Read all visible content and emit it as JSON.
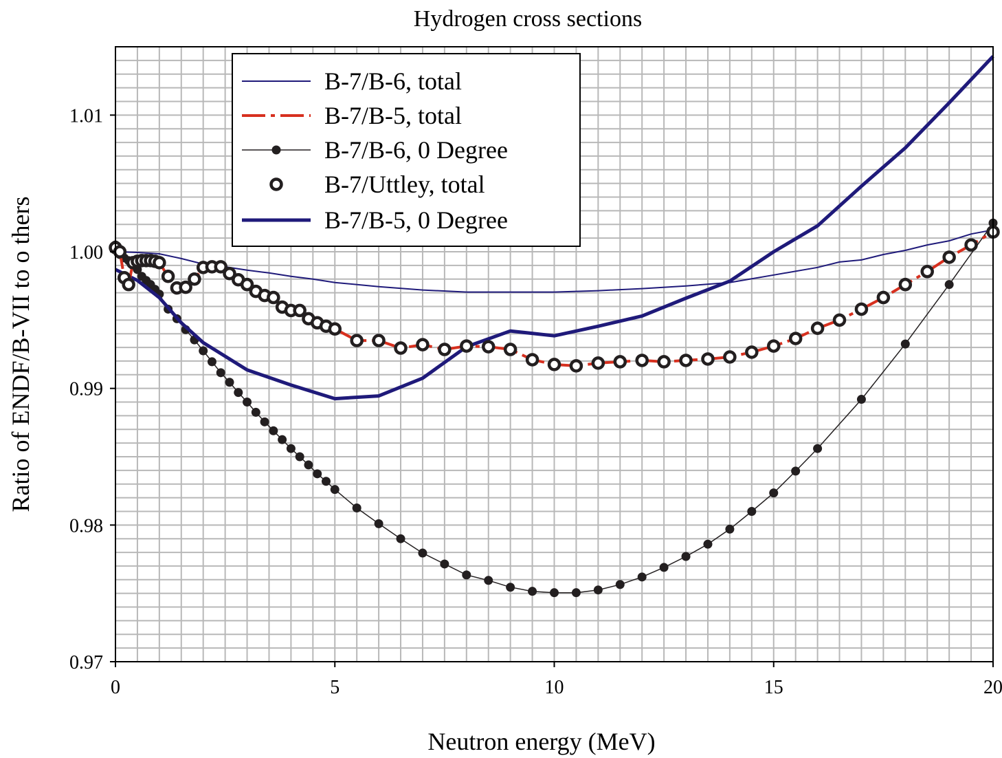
{
  "chart_data": {
    "type": "line",
    "title": "Hydrogen cross sections",
    "xlabel": "Neutron energy (MeV)",
    "ylabel": "Ratio of ENDF/B-VII to o thers",
    "xlim": [
      0,
      20
    ],
    "ylim": [
      0.97,
      1.015
    ],
    "x_ticks": [
      0,
      5,
      10,
      15,
      20
    ],
    "x_tick_labels": [
      "0",
      "5",
      "10",
      "15",
      "20"
    ],
    "y_ticks": [
      0.97,
      0.98,
      0.99,
      1.0,
      1.01
    ],
    "y_tick_labels": [
      "0.97",
      "0.98",
      "0.99",
      "1.00",
      "1.01"
    ],
    "grid": true,
    "legend_position": "top-left",
    "series": [
      {
        "name": "B-7/B-6, total",
        "style": "thin-line",
        "color": "#1f1a7a",
        "x": [
          0,
          0.5,
          1,
          1.5,
          2,
          2.5,
          3,
          3.5,
          4,
          4.5,
          5,
          6,
          7,
          8,
          9,
          10,
          11,
          12,
          13,
          14,
          15,
          16,
          16.5,
          17,
          17.5,
          18,
          18.5,
          19,
          19.5,
          20
        ],
        "y": [
          1.0,
          0.99995,
          0.99985,
          0.9995,
          0.9991,
          0.9989,
          0.99865,
          0.99845,
          0.9982,
          0.998,
          0.99775,
          0.99745,
          0.9972,
          0.99705,
          0.99705,
          0.99705,
          0.99715,
          0.9973,
          0.9975,
          0.99775,
          0.9983,
          0.99885,
          0.99925,
          0.9994,
          0.9998,
          1.0001,
          1.0005,
          1.0008,
          1.0013,
          1.0016
        ]
      },
      {
        "name": "B-7/B-5, total",
        "style": "dashed-line",
        "color": "#d7301f",
        "x": [
          0,
          0.1,
          0.2,
          0.3,
          0.4,
          0.5,
          0.6,
          0.7,
          0.8,
          0.9,
          1.0,
          1.2,
          1.4,
          1.6,
          1.8,
          2.0,
          2.2,
          2.4,
          2.6,
          2.8,
          3.0,
          3.2,
          3.4,
          3.6,
          3.8,
          4.0,
          4.2,
          4.4,
          4.6,
          4.8,
          5.0,
          5.5,
          6.0,
          6.5,
          7.0,
          7.5,
          8.0,
          8.5,
          9.0,
          9.5,
          10.0,
          10.5,
          11.0,
          11.5,
          12.0,
          12.5,
          13.0,
          13.5,
          14.0,
          14.5,
          15.0,
          15.5,
          16.0,
          16.5,
          17.0,
          17.5,
          18.0,
          18.5,
          19.0,
          19.5,
          20.0
        ],
        "y": [
          1.0003,
          1.0,
          0.9981,
          0.9976,
          0.9992,
          0.9993,
          0.99935,
          0.99935,
          0.99935,
          0.9993,
          0.9992,
          0.9982,
          0.99735,
          0.9974,
          0.998,
          0.99885,
          0.9989,
          0.9989,
          0.9984,
          0.99795,
          0.9976,
          0.9971,
          0.9968,
          0.99665,
          0.99595,
          0.9957,
          0.9957,
          0.9951,
          0.9948,
          0.99455,
          0.99435,
          0.9935,
          0.9935,
          0.99295,
          0.9932,
          0.99285,
          0.9931,
          0.99305,
          0.99285,
          0.9921,
          0.99175,
          0.99165,
          0.99185,
          0.99195,
          0.99205,
          0.99195,
          0.99205,
          0.99215,
          0.9923,
          0.99265,
          0.9931,
          0.99365,
          0.9944,
          0.995,
          0.9958,
          0.99665,
          0.9976,
          0.99855,
          0.9996,
          1.0005,
          1.00145
        ]
      },
      {
        "name": "B-7/B-6, 0 Degree",
        "style": "thin-line-filled-dots",
        "color": "#231f20",
        "x": [
          0,
          0.1,
          0.2,
          0.3,
          0.4,
          0.5,
          0.6,
          0.7,
          0.8,
          0.9,
          1.0,
          1.2,
          1.4,
          1.6,
          1.8,
          2.0,
          2.2,
          2.4,
          2.6,
          2.8,
          3.0,
          3.2,
          3.4,
          3.6,
          3.8,
          4.0,
          4.2,
          4.4,
          4.6,
          4.8,
          5.0,
          5.5,
          6.0,
          6.5,
          7.0,
          7.5,
          8.0,
          8.5,
          9.0,
          9.5,
          10.0,
          10.5,
          11.0,
          11.5,
          12.0,
          12.5,
          13.0,
          13.5,
          14.0,
          14.5,
          15.0,
          15.5,
          16.0,
          17.0,
          18.0,
          19.0,
          20.0
        ],
        "y": [
          1.0005,
          0.9998,
          0.99955,
          0.99935,
          0.999,
          0.9987,
          0.9982,
          0.9979,
          0.9976,
          0.99725,
          0.9969,
          0.9958,
          0.9951,
          0.9943,
          0.99355,
          0.99275,
          0.99195,
          0.99115,
          0.99045,
          0.9897,
          0.989,
          0.98825,
          0.98755,
          0.9869,
          0.98625,
          0.9856,
          0.985,
          0.9844,
          0.98375,
          0.9832,
          0.9826,
          0.98125,
          0.9801,
          0.979,
          0.97795,
          0.97715,
          0.97635,
          0.97595,
          0.97545,
          0.97515,
          0.97505,
          0.97505,
          0.97525,
          0.97565,
          0.9762,
          0.9769,
          0.9777,
          0.9786,
          0.9797,
          0.981,
          0.98235,
          0.98395,
          0.9856,
          0.9892,
          0.99325,
          0.9976,
          1.0021
        ]
      },
      {
        "name": "B-7/Uttley, total",
        "style": "open-circles",
        "color": "#231f20",
        "x": [
          0,
          0.1,
          0.2,
          0.3,
          0.4,
          0.5,
          0.6,
          0.7,
          0.8,
          0.9,
          1.0,
          1.2,
          1.4,
          1.6,
          1.8,
          2.0,
          2.2,
          2.4,
          2.6,
          2.8,
          3.0,
          3.2,
          3.4,
          3.6,
          3.8,
          4.0,
          4.2,
          4.4,
          4.6,
          4.8,
          5.0,
          5.5,
          6.0,
          6.5,
          7.0,
          7.5,
          8.0,
          8.5,
          9.0,
          9.5,
          10.0,
          10.5,
          11.0,
          11.5,
          12.0,
          12.5,
          13.0,
          13.5,
          14.0,
          14.5,
          15.0,
          15.5,
          16.0,
          16.5,
          17.0,
          17.5,
          18.0,
          18.5,
          19.0,
          19.5,
          20.0
        ],
        "y": [
          1.0003,
          1.0,
          0.9981,
          0.9976,
          0.9992,
          0.9993,
          0.99935,
          0.99935,
          0.99935,
          0.9993,
          0.9992,
          0.9982,
          0.99735,
          0.9974,
          0.998,
          0.99885,
          0.9989,
          0.9989,
          0.9984,
          0.99795,
          0.9976,
          0.9971,
          0.9968,
          0.99665,
          0.99595,
          0.9957,
          0.9957,
          0.9951,
          0.9948,
          0.99455,
          0.99435,
          0.9935,
          0.9935,
          0.99295,
          0.9932,
          0.99285,
          0.9931,
          0.99305,
          0.99285,
          0.9921,
          0.99175,
          0.99165,
          0.99185,
          0.99195,
          0.99205,
          0.99195,
          0.99205,
          0.99215,
          0.9923,
          0.99265,
          0.9931,
          0.99365,
          0.9944,
          0.995,
          0.9958,
          0.99665,
          0.9976,
          0.99855,
          0.9996,
          1.0005,
          1.00145
        ]
      },
      {
        "name": "B-7/B-5, 0 Degree",
        "style": "thick-line",
        "color": "#1f1a7a",
        "x": [
          0,
          0.5,
          1,
          1.5,
          2,
          3,
          4,
          5,
          6,
          7,
          8,
          9,
          10,
          11,
          12,
          13,
          14,
          15,
          16,
          17,
          18,
          19,
          20
        ],
        "y": [
          0.9987,
          0.9979,
          0.99665,
          0.9948,
          0.99335,
          0.99135,
          0.99025,
          0.98925,
          0.98945,
          0.99075,
          0.99305,
          0.9942,
          0.99385,
          0.99455,
          0.9953,
          0.9966,
          0.99785,
          1.0,
          1.0019,
          1.0048,
          1.0076,
          1.0109,
          1.0143
        ]
      }
    ]
  }
}
